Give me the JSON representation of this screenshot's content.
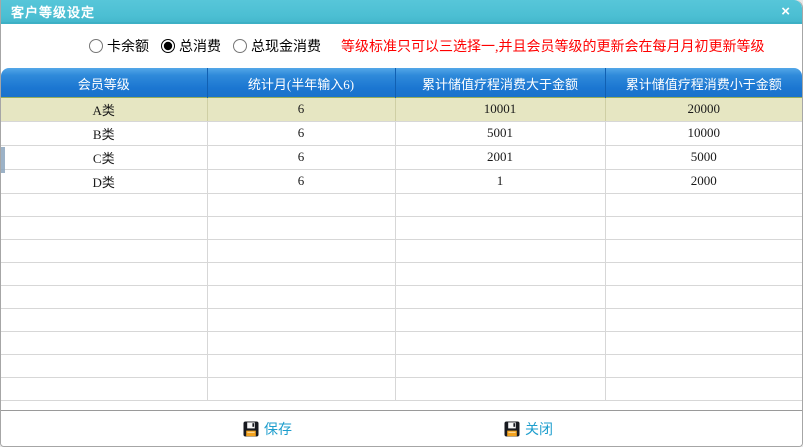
{
  "colors": {
    "titlebar": "#4cbfd3",
    "table_header": "#1b76d1",
    "selected_row": "#e6e6c2",
    "warning_text": "#ff0000",
    "button_text": "#1e9ecd"
  },
  "window": {
    "title": "客户等级设定",
    "close_icon": "×"
  },
  "filters": {
    "radios": [
      {
        "label": "卡余额",
        "checked": false
      },
      {
        "label": "总消费",
        "checked": true
      },
      {
        "label": "总现金消费",
        "checked": false
      }
    ],
    "warning": "等级标准只可以三选择一,并且会员等级的更新会在每月月初更新等级"
  },
  "table": {
    "columns": [
      "会员等级",
      "统计月(半年输入6)",
      "累计储值疗程消费大于金额",
      "累计储值疗程消费小于金额"
    ],
    "rows": [
      {
        "cells": [
          "A类",
          "6",
          "10001",
          "20000"
        ],
        "selected": true
      },
      {
        "cells": [
          "B类",
          "6",
          "5001",
          "10000"
        ],
        "selected": false
      },
      {
        "cells": [
          "C类",
          "6",
          "2001",
          "5000"
        ],
        "selected": false
      },
      {
        "cells": [
          "D类",
          "6",
          "1",
          "2000"
        ],
        "selected": false
      }
    ],
    "empty_rows": 9
  },
  "footer": {
    "save_label": "保存",
    "close_label": "关闭"
  }
}
